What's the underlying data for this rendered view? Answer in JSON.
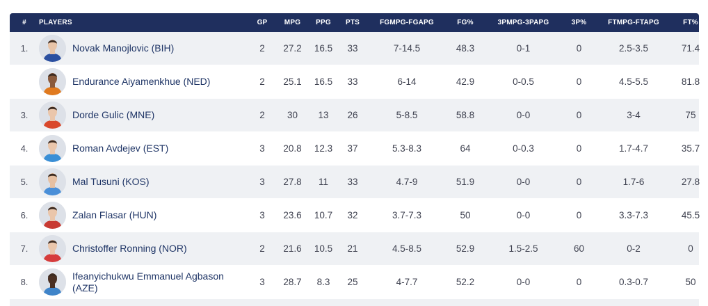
{
  "headers": {
    "rank": "#",
    "players": "PLAYERS",
    "gp": "GP",
    "mpg": "MPG",
    "ppg": "PPG",
    "pts": "PTS",
    "fg": "FGMPG-FGAPG",
    "fgp": "FG%",
    "tp": "3PMPG-3PAPG",
    "tpp": "3P%",
    "ft": "FTMPG-FTAPG",
    "ftp": "FT%"
  },
  "rows": [
    {
      "rank": "1.",
      "player": "Novak Manojlovic (BIH)",
      "gp": "2",
      "mpg": "27.2",
      "ppg": "16.5",
      "pts": "33",
      "fg": "7-14.5",
      "fgp": "48.3",
      "tp": "0-1",
      "tpp": "0",
      "ft": "2.5-3.5",
      "ftp": "71.4",
      "jersey": "#2b4fa0",
      "skin": "#e8c4a8"
    },
    {
      "rank": "",
      "player": "Endurance Aiyamenkhue (NED)",
      "gp": "2",
      "mpg": "25.1",
      "ppg": "16.5",
      "pts": "33",
      "fg": "6-14",
      "fgp": "42.9",
      "tp": "0-0.5",
      "tpp": "0",
      "ft": "4.5-5.5",
      "ftp": "81.8",
      "jersey": "#e07a1f",
      "skin": "#8a5a3c"
    },
    {
      "rank": "3.",
      "player": "Dorde Gulic (MNE)",
      "gp": "2",
      "mpg": "30",
      "ppg": "13",
      "pts": "26",
      "fg": "5-8.5",
      "fgp": "58.8",
      "tp": "0-0",
      "tpp": "0",
      "ft": "3-4",
      "ftp": "75",
      "jersey": "#d9482b",
      "skin": "#eac6ab"
    },
    {
      "rank": "4.",
      "player": "Roman Avdejev (EST)",
      "gp": "3",
      "mpg": "20.8",
      "ppg": "12.3",
      "pts": "37",
      "fg": "5.3-8.3",
      "fgp": "64",
      "tp": "0-0.3",
      "tpp": "0",
      "ft": "1.7-4.7",
      "ftp": "35.7",
      "jersey": "#3a8fd6",
      "skin": "#eac6ab"
    },
    {
      "rank": "5.",
      "player": "Mal Tusuni (KOS)",
      "gp": "3",
      "mpg": "27.8",
      "ppg": "11",
      "pts": "33",
      "fg": "4.7-9",
      "fgp": "51.9",
      "tp": "0-0",
      "tpp": "0",
      "ft": "1.7-6",
      "ftp": "27.8",
      "jersey": "#4a8fd8",
      "skin": "#e6c0a2"
    },
    {
      "rank": "6.",
      "player": "Zalan Flasar (HUN)",
      "gp": "3",
      "mpg": "23.6",
      "ppg": "10.7",
      "pts": "32",
      "fg": "3.7-7.3",
      "fgp": "50",
      "tp": "0-0",
      "tpp": "0",
      "ft": "3.3-7.3",
      "ftp": "45.5",
      "jersey": "#c83a32",
      "skin": "#eac6ab"
    },
    {
      "rank": "7.",
      "player": "Christoffer Ronning (NOR)",
      "gp": "2",
      "mpg": "21.6",
      "ppg": "10.5",
      "pts": "21",
      "fg": "4.5-8.5",
      "fgp": "52.9",
      "tp": "1.5-2.5",
      "tpp": "60",
      "ft": "0-2",
      "ftp": "0",
      "jersey": "#d63c3c",
      "skin": "#eac6ab"
    },
    {
      "rank": "8.",
      "player": "Ifeanyichukwu Emmanuel Agbason (AZE)",
      "gp": "3",
      "mpg": "28.7",
      "ppg": "8.3",
      "pts": "25",
      "fg": "4-7.7",
      "fgp": "52.2",
      "tp": "0-0",
      "tpp": "0",
      "ft": "0.3-0.7",
      "ftp": "50",
      "jersey": "#3f84c9",
      "skin": "#4a2f22"
    }
  ]
}
